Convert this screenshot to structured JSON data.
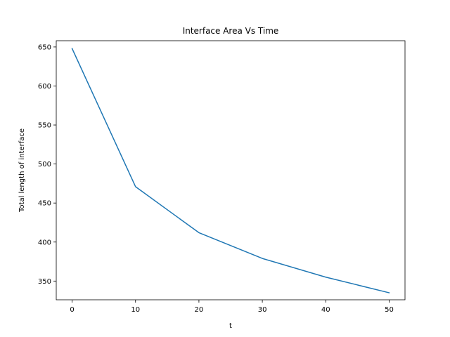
{
  "chart_data": {
    "type": "line",
    "title": "Interface Area Vs Time",
    "xlabel": "t",
    "ylabel": "Total length of interface",
    "xlim": [
      -2.5,
      52.5
    ],
    "ylim": [
      326,
      658
    ],
    "x_ticks": [
      0,
      10,
      20,
      30,
      40,
      50
    ],
    "y_ticks": [
      350,
      400,
      450,
      500,
      550,
      600,
      650
    ],
    "grid": false,
    "series": [
      {
        "x": [
          0,
          10,
          20,
          30,
          40,
          50
        ],
        "y": [
          648,
          471,
          412,
          379,
          355,
          335
        ],
        "color": "#1f77b4"
      }
    ]
  }
}
